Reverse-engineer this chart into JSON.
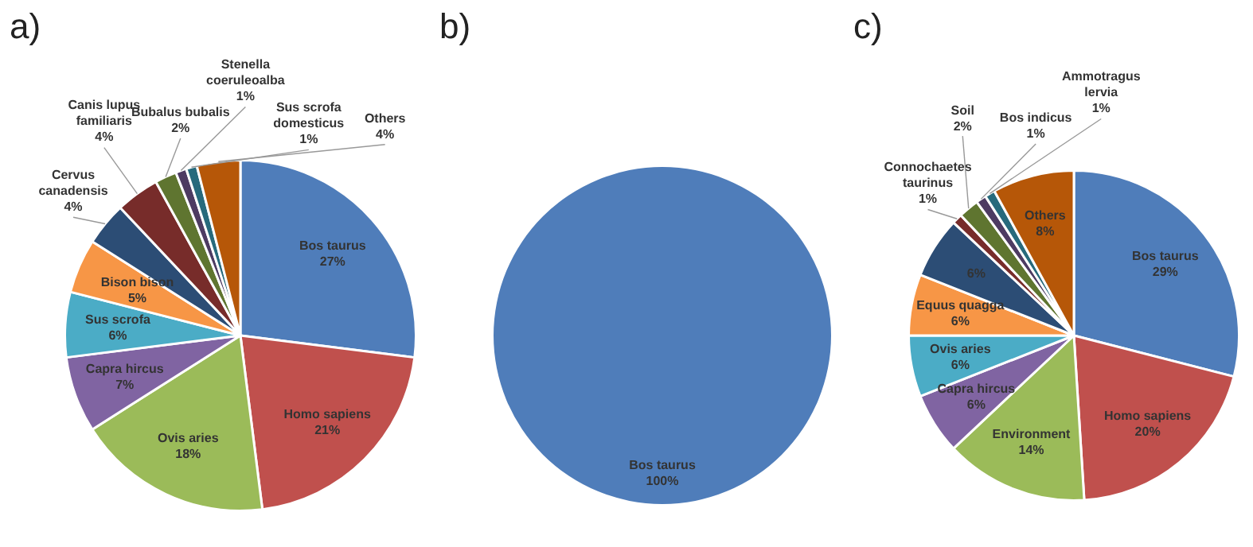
{
  "chart_data": [
    {
      "type": "pie",
      "title": "a)",
      "categories": [
        "Bos taurus",
        "Homo sapiens",
        "Ovis aries",
        "Capra hircus",
        "Sus scrofa",
        "Bison bison",
        "Cervus canadensis",
        "Canis lupus familiaris",
        "Bubalus bubalis",
        "Stenella coeruleoalba",
        "Sus scrofa domesticus",
        "Others"
      ],
      "values": [
        27,
        21,
        18,
        7,
        6,
        5,
        4,
        4,
        2,
        1,
        1,
        4
      ],
      "value_labels": [
        "27%",
        "21%",
        "18%",
        "7%",
        "6%",
        "5%",
        "4%",
        "4%",
        "2%",
        "1%",
        "1%",
        "4%"
      ],
      "colors": [
        "#4f7dba",
        "#c0504d",
        "#9bbb59",
        "#8064a2",
        "#4bacc6",
        "#f79646",
        "#2c4d75",
        "#772c2a",
        "#5f7530",
        "#4d3b62",
        "#276a7c",
        "#b65708"
      ]
    },
    {
      "type": "pie",
      "title": "b)",
      "categories": [
        "Bos taurus"
      ],
      "values": [
        100
      ],
      "value_labels": [
        "100%"
      ],
      "colors": [
        "#4f7dba"
      ]
    },
    {
      "type": "pie",
      "title": "c)",
      "categories": [
        "Bos taurus",
        "Homo sapiens",
        "Environment",
        "Capra hircus",
        "Ovis aries",
        "Equus quagga",
        null,
        "Connochaetes taurinus",
        "Soil",
        "Bos indicus",
        "Ammotragus lervia",
        "Others"
      ],
      "values": [
        29,
        20,
        14,
        6,
        6,
        6,
        6,
        1,
        2,
        1,
        1,
        8
      ],
      "value_labels": [
        "29%",
        "20%",
        "14%",
        "6%",
        "6%",
        "6%",
        "6%",
        "1%",
        "2%",
        "1%",
        "1%",
        "8%"
      ],
      "colors": [
        "#4f7dba",
        "#c0504d",
        "#9bbb59",
        "#8064a2",
        "#4bacc6",
        "#f79646",
        "#2c4d75",
        "#772c2a",
        "#5f7530",
        "#4d3b62",
        "#276a7c",
        "#b65708"
      ]
    }
  ]
}
